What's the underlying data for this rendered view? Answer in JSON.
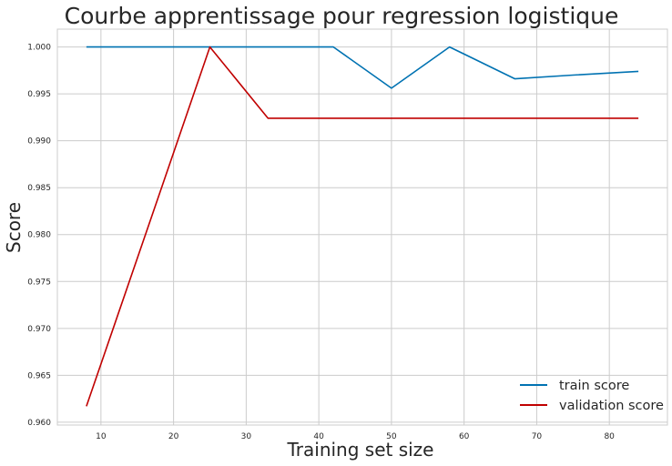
{
  "chart_data": {
    "type": "line",
    "title": "Courbe apprentissage pour regression logistique",
    "xlabel": "Training set size",
    "ylabel": "Score",
    "xlim": [
      4,
      88
    ],
    "ylim": [
      0.9597,
      1.0019
    ],
    "x_ticks": [
      10,
      20,
      30,
      40,
      50,
      60,
      70,
      80
    ],
    "y_ticks": [
      0.96,
      0.965,
      0.97,
      0.975,
      0.98,
      0.985,
      0.99,
      0.995,
      1.0
    ],
    "y_tick_labels": [
      "0.960",
      "0.965",
      "0.970",
      "0.975",
      "0.980",
      "0.985",
      "0.990",
      "0.995",
      "1.000"
    ],
    "grid": true,
    "legend_position": "lower-right",
    "series": [
      {
        "name": "train score",
        "color": "#0072b2",
        "x": [
          8,
          16,
          25,
          33,
          42,
          50,
          58,
          67,
          75,
          84
        ],
        "y": [
          1.0,
          1.0,
          1.0,
          1.0,
          1.0,
          0.9956,
          1.0,
          0.9966,
          0.997,
          0.9974
        ]
      },
      {
        "name": "validation score",
        "color": "#c00000",
        "x": [
          8,
          16,
          25,
          33,
          42,
          50,
          58,
          67,
          75,
          84
        ],
        "y": [
          0.9617,
          0.9797,
          1.0,
          0.9924,
          0.9924,
          0.9924,
          0.9924,
          0.9924,
          0.9924,
          0.9924
        ]
      }
    ]
  }
}
